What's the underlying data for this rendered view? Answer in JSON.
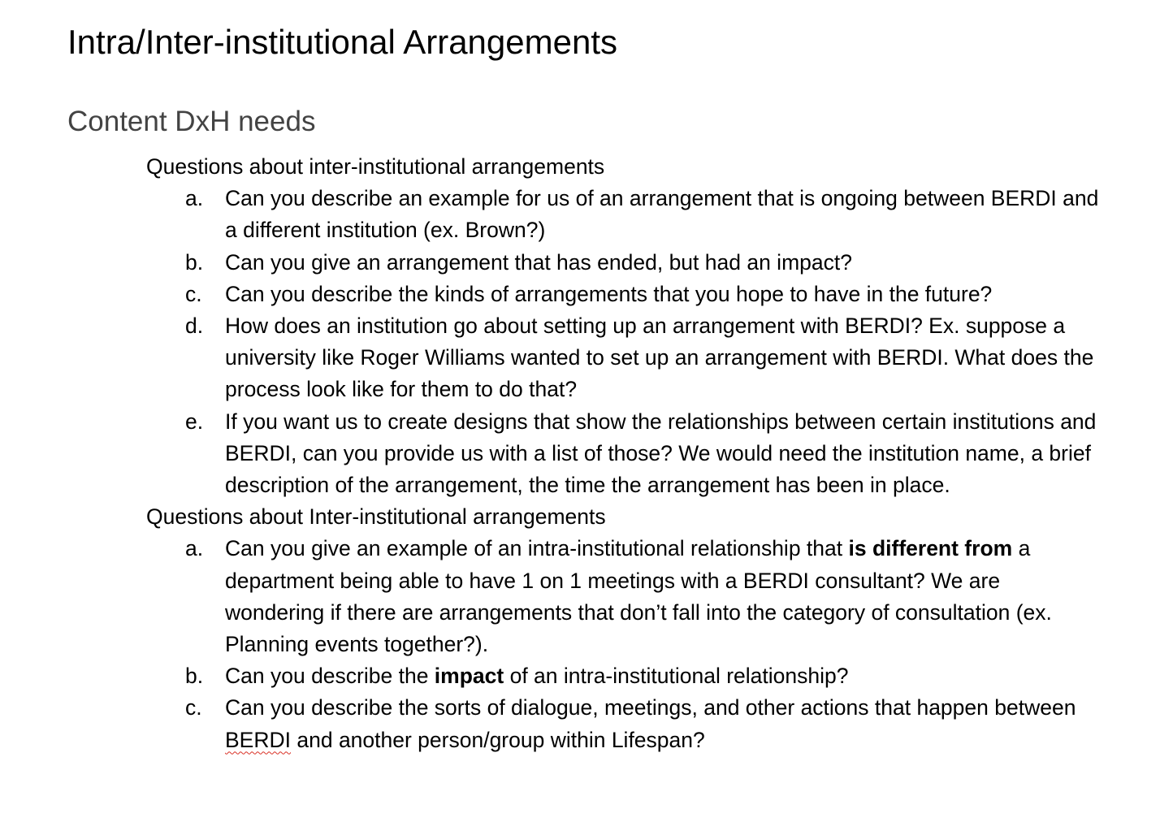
{
  "document": {
    "title": "Intra/Inter-institutional Arrangements",
    "subtitle": "Content DxH needs"
  },
  "sections": [
    {
      "heading": "Questions about inter-institutional arrangements",
      "items": [
        {
          "marker": "a.",
          "text": "Can you describe an example for us of an arrangement that is ongoing between BERDI and a different institution (ex. Brown?)"
        },
        {
          "marker": "b.",
          "text": "Can you give an arrangement that has ended, but had an impact?"
        },
        {
          "marker": "c.",
          "text": "Can you describe the kinds of arrangements that you hope to have in the future?"
        },
        {
          "marker": "d.",
          "text": "How does an institution go about setting up an arrangement with BERDI? Ex. suppose a university like Roger Williams wanted to set up an arrangement with BERDI. What does the process look like for them to do that?"
        },
        {
          "marker": "e.",
          "text": "If you want us to create designs that show the relationships between certain institutions and BERDI, can you provide us with a list of those? We would need the institution name, a brief description of the arrangement, the time the arrangement has been in place."
        }
      ]
    },
    {
      "heading": "Questions about Inter-institutional arrangements",
      "items": [
        {
          "marker": "a.",
          "text_before": "Can you give an example of an intra-institutional relationship that ",
          "text_bold": "is different from",
          "text_after": " a department being able to have 1 on 1 meetings with a BERDI consultant? We are wondering if there are arrangements that don’t fall into the category of consultation (ex. Planning events together?)."
        },
        {
          "marker": "b.",
          "text_before": "Can you describe the ",
          "text_bold": "impact",
          "text_after": " of an intra-institutional relationship?"
        },
        {
          "marker": "c.",
          "text_before": "Can you describe the sorts of dialogue, meetings, and other actions that happen between ",
          "text_flagged": "BERDI",
          "text_after": " and another person/group within Lifespan?"
        }
      ]
    }
  ]
}
